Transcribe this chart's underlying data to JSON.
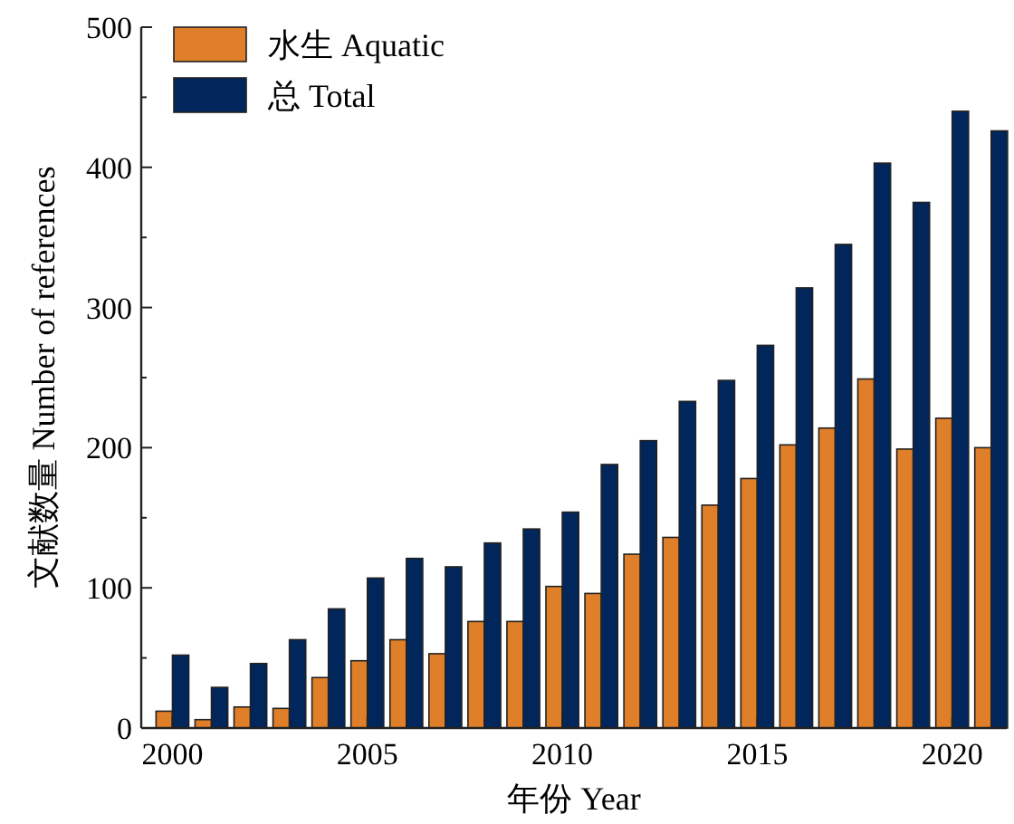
{
  "chart_data": {
    "type": "bar",
    "xlabel": "年份 Year",
    "ylabel": "文献数量 Number of references",
    "x": [
      2000,
      2001,
      2002,
      2003,
      2004,
      2005,
      2006,
      2007,
      2008,
      2009,
      2010,
      2011,
      2012,
      2013,
      2014,
      2015,
      2016,
      2017,
      2018,
      2019,
      2020,
      2021
    ],
    "series": [
      {
        "name": "水生 Aquatic",
        "color": "#e07f2a",
        "values": [
          12,
          6,
          15,
          14,
          36,
          48,
          63,
          53,
          76,
          76,
          101,
          96,
          124,
          136,
          159,
          178,
          202,
          214,
          249,
          199,
          221,
          200
        ]
      },
      {
        "name": "总 Total",
        "color": "#00265c",
        "values": [
          52,
          29,
          46,
          63,
          85,
          107,
          121,
          115,
          132,
          142,
          154,
          188,
          205,
          233,
          248,
          273,
          314,
          345,
          403,
          375,
          440,
          426
        ]
      }
    ],
    "xlim": [
      1999.2,
      2021.4
    ],
    "ylim": [
      0,
      500
    ],
    "xticks": [
      2000,
      2005,
      2010,
      2015,
      2020
    ],
    "yticks": [
      0,
      100,
      200,
      300,
      400,
      500
    ],
    "legend": "top left",
    "grid": false
  }
}
